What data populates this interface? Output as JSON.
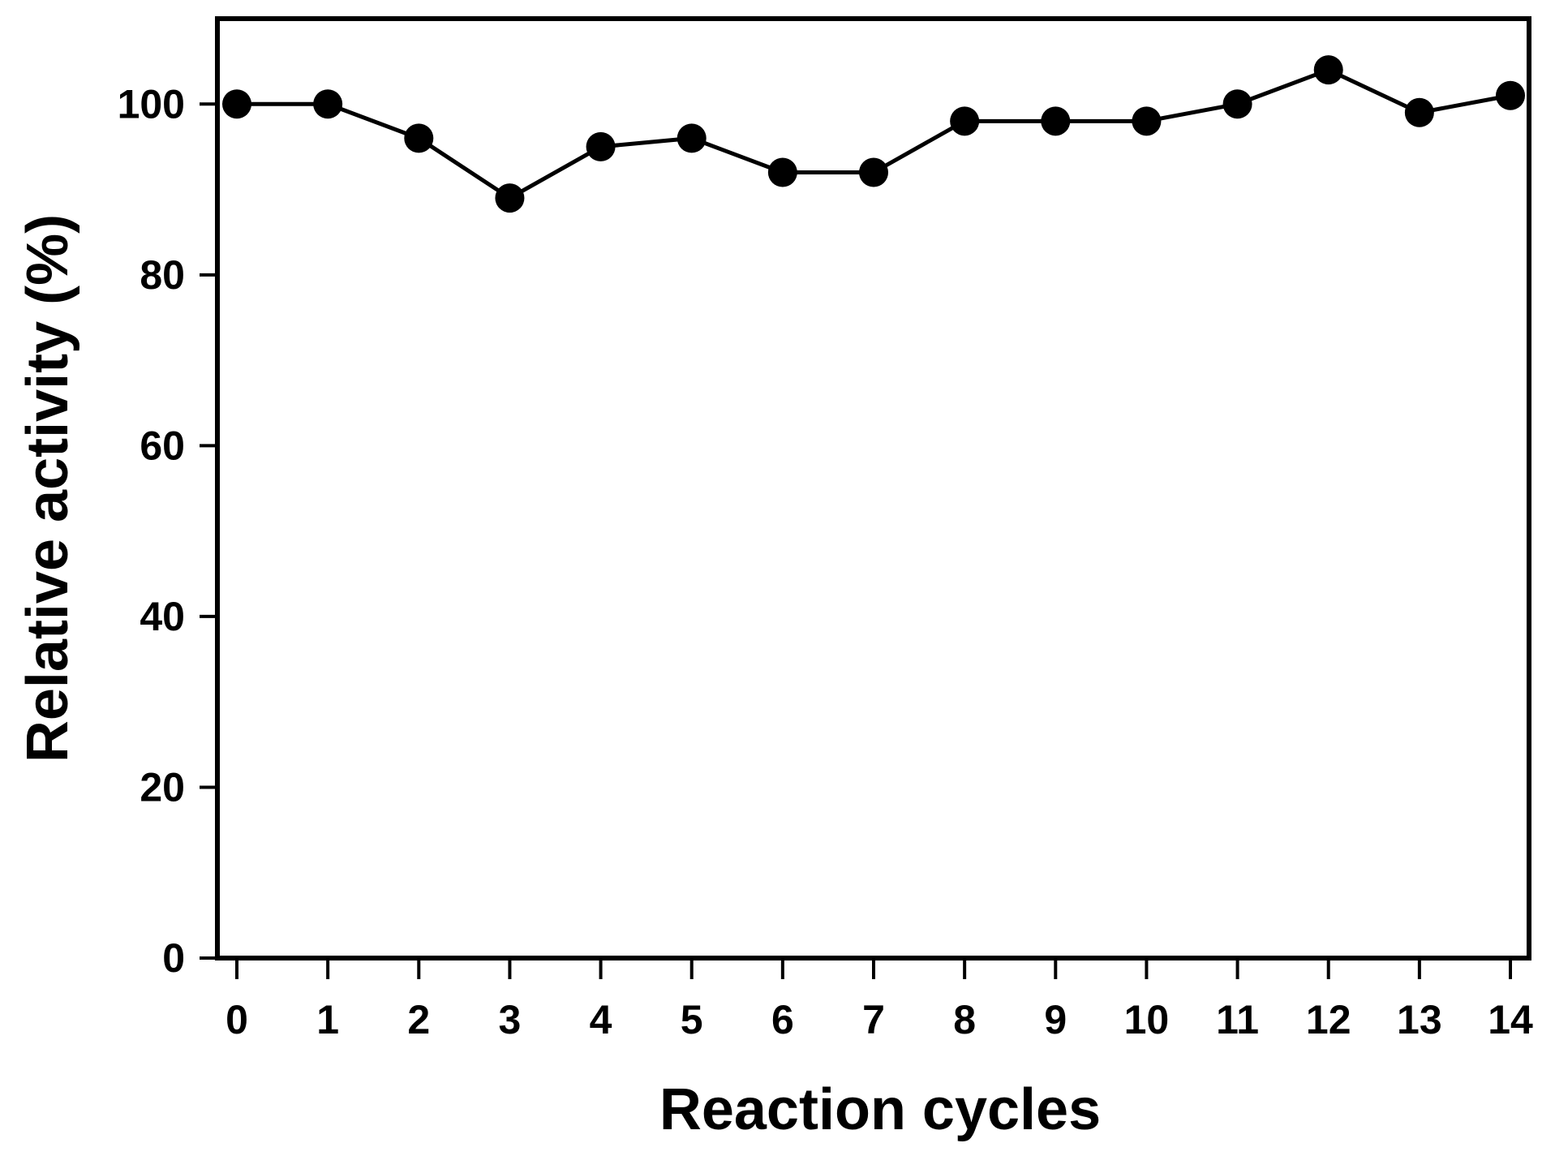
{
  "chart_data": {
    "type": "line",
    "title": "",
    "xlabel": "Reaction cycles",
    "ylabel": "Relative activity (%)",
    "x": [
      0,
      1,
      2,
      3,
      4,
      5,
      6,
      7,
      8,
      9,
      10,
      11,
      12,
      13,
      14
    ],
    "series": [
      {
        "name": "Relative activity",
        "values": [
          100,
          100,
          96,
          89,
          95,
          96,
          92,
          92,
          98,
          98,
          98,
          100,
          104,
          99,
          101
        ]
      }
    ],
    "xticks": [
      0,
      1,
      2,
      3,
      4,
      5,
      6,
      7,
      8,
      9,
      10,
      11,
      12,
      13,
      14
    ],
    "yticks": [
      0,
      20,
      40,
      60,
      80,
      100
    ],
    "xlim": [
      -0.214,
      14.205
    ],
    "ylim": [
      0,
      110
    ],
    "grid": false,
    "legend": "none",
    "marker": "filled-circle",
    "colors": {
      "line": "#000000",
      "marker": "#000000",
      "axis": "#000000",
      "background": "#ffffff",
      "text": "#000000"
    }
  }
}
